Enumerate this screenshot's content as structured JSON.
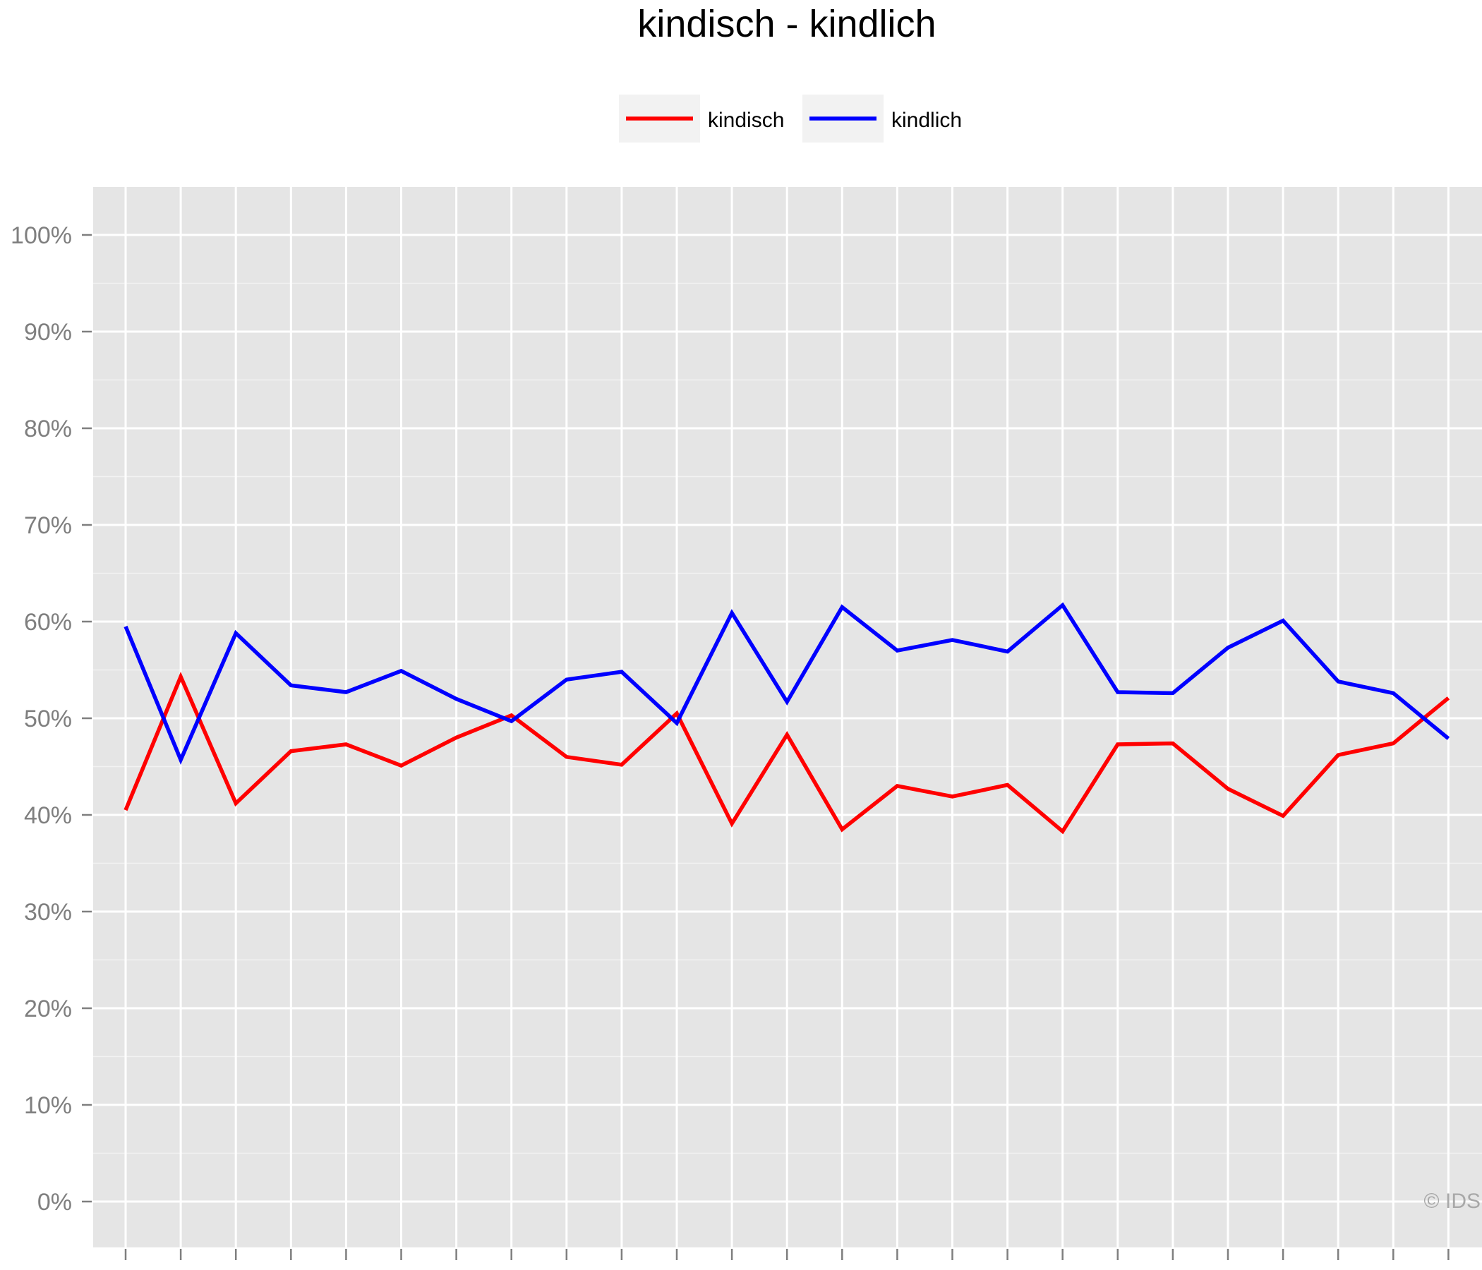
{
  "chart_data": {
    "type": "line",
    "title": "kindisch - kindlich",
    "xlabel": "",
    "ylabel": "",
    "ylim": [
      -0.05,
      1.05
    ],
    "y_ticks": [
      {
        "value": 0.0,
        "label": "0%"
      },
      {
        "value": 0.1,
        "label": "10%"
      },
      {
        "value": 0.2,
        "label": "20%"
      },
      {
        "value": 0.3,
        "label": "30%"
      },
      {
        "value": 0.4,
        "label": "40%"
      },
      {
        "value": 0.5,
        "label": "50%"
      },
      {
        "value": 0.6,
        "label": "60%"
      },
      {
        "value": 0.7,
        "label": "70%"
      },
      {
        "value": 0.8,
        "label": "80%"
      },
      {
        "value": 0.9,
        "label": "90%"
      },
      {
        "value": 1.0,
        "label": "100%"
      }
    ],
    "x": [
      1,
      2,
      3,
      4,
      5,
      6,
      7,
      8,
      9,
      10,
      11,
      12,
      13,
      14,
      15,
      16,
      17,
      18,
      19,
      20,
      21,
      22,
      23,
      24,
      25
    ],
    "x_tick_labels_visible": false,
    "grid": true,
    "legend_position": "top",
    "watermark": "© IDS",
    "series": [
      {
        "name": "kindisch",
        "color": "#ff0000",
        "values": [
          0.405,
          0.543,
          0.412,
          0.466,
          0.473,
          0.451,
          0.48,
          0.503,
          0.46,
          0.452,
          0.505,
          0.391,
          0.483,
          0.385,
          0.43,
          0.419,
          0.431,
          0.383,
          0.473,
          0.474,
          0.427,
          0.399,
          0.462,
          0.474,
          0.521
        ]
      },
      {
        "name": "kindlich",
        "color": "#0000ff",
        "values": [
          0.595,
          0.457,
          0.588,
          0.534,
          0.527,
          0.549,
          0.52,
          0.497,
          0.54,
          0.548,
          0.495,
          0.609,
          0.517,
          0.615,
          0.57,
          0.581,
          0.569,
          0.617,
          0.527,
          0.526,
          0.573,
          0.601,
          0.538,
          0.526,
          0.479
        ]
      }
    ]
  }
}
